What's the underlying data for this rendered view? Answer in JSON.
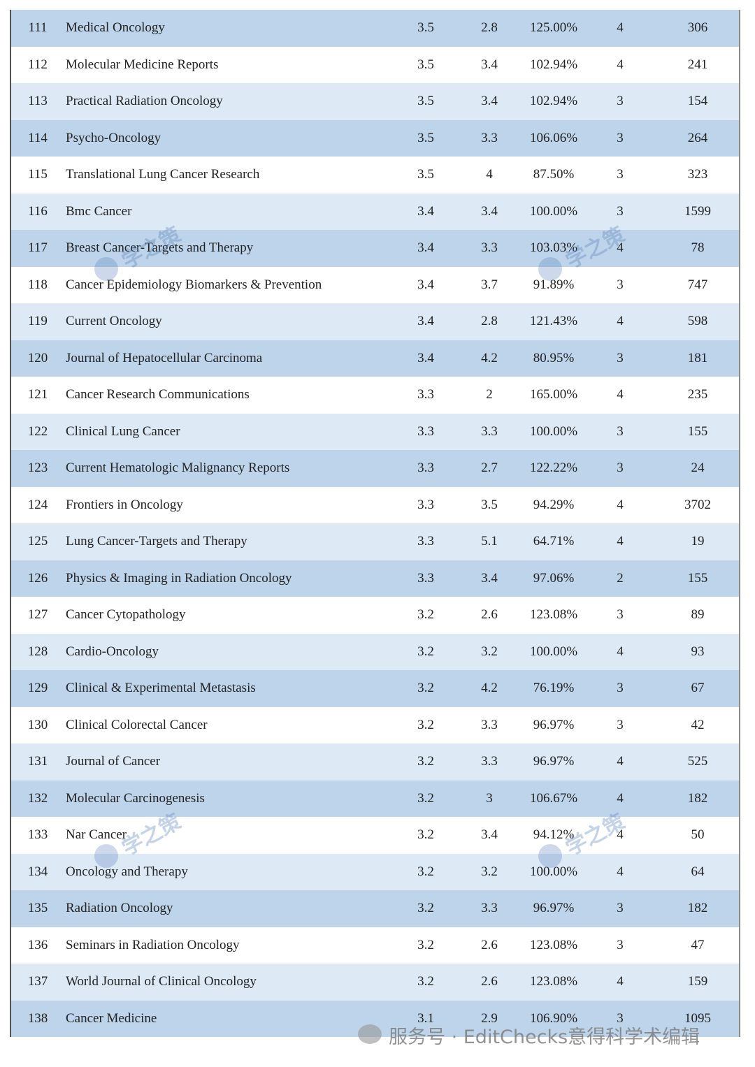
{
  "table": {
    "rows": [
      [
        "111",
        "Medical Oncology",
        "3.5",
        "2.8",
        "125.00%",
        "4",
        "306"
      ],
      [
        "112",
        "Molecular Medicine Reports",
        "3.5",
        "3.4",
        "102.94%",
        "4",
        "241"
      ],
      [
        "113",
        "Practical Radiation Oncology",
        "3.5",
        "3.4",
        "102.94%",
        "3",
        "154"
      ],
      [
        "114",
        "Psycho-Oncology",
        "3.5",
        "3.3",
        "106.06%",
        "3",
        "264"
      ],
      [
        "115",
        "Translational Lung Cancer Research",
        "3.5",
        "4",
        "87.50%",
        "3",
        "323"
      ],
      [
        "116",
        "Bmc Cancer",
        "3.4",
        "3.4",
        "100.00%",
        "3",
        "1599"
      ],
      [
        "117",
        "Breast Cancer-Targets and Therapy",
        "3.4",
        "3.3",
        "103.03%",
        "4",
        "78"
      ],
      [
        "118",
        "Cancer Epidemiology Biomarkers & Prevention",
        "3.4",
        "3.7",
        "91.89%",
        "3",
        "747"
      ],
      [
        "119",
        "Current Oncology",
        "3.4",
        "2.8",
        "121.43%",
        "4",
        "598"
      ],
      [
        "120",
        "Journal of Hepatocellular Carcinoma",
        "3.4",
        "4.2",
        "80.95%",
        "3",
        "181"
      ],
      [
        "121",
        "Cancer Research Communications",
        "3.3",
        "2",
        "165.00%",
        "4",
        "235"
      ],
      [
        "122",
        "Clinical Lung Cancer",
        "3.3",
        "3.3",
        "100.00%",
        "3",
        "155"
      ],
      [
        "123",
        "Current Hematologic Malignancy Reports",
        "3.3",
        "2.7",
        "122.22%",
        "3",
        "24"
      ],
      [
        "124",
        "Frontiers in Oncology",
        "3.3",
        "3.5",
        "94.29%",
        "4",
        "3702"
      ],
      [
        "125",
        "Lung Cancer-Targets and Therapy",
        "3.3",
        "5.1",
        "64.71%",
        "4",
        "19"
      ],
      [
        "126",
        "Physics & Imaging in Radiation Oncology",
        "3.3",
        "3.4",
        "97.06%",
        "2",
        "155"
      ],
      [
        "127",
        "Cancer Cytopathology",
        "3.2",
        "2.6",
        "123.08%",
        "3",
        "89"
      ],
      [
        "128",
        "Cardio-Oncology",
        "3.2",
        "3.2",
        "100.00%",
        "4",
        "93"
      ],
      [
        "129",
        "Clinical & Experimental Metastasis",
        "3.2",
        "4.2",
        "76.19%",
        "3",
        "67"
      ],
      [
        "130",
        "Clinical Colorectal Cancer",
        "3.2",
        "3.3",
        "96.97%",
        "3",
        "42"
      ],
      [
        "131",
        "Journal of Cancer",
        "3.2",
        "3.3",
        "96.97%",
        "4",
        "525"
      ],
      [
        "132",
        "Molecular Carcinogenesis",
        "3.2",
        "3",
        "106.67%",
        "4",
        "182"
      ],
      [
        "133",
        "Nar Cancer",
        "3.2",
        "3.4",
        "94.12%",
        "4",
        "50"
      ],
      [
        "134",
        "Oncology and Therapy",
        "3.2",
        "3.2",
        "100.00%",
        "4",
        "64"
      ],
      [
        "135",
        "Radiation Oncology",
        "3.2",
        "3.3",
        "96.97%",
        "3",
        "182"
      ],
      [
        "136",
        "Seminars in Radiation Oncology",
        "3.2",
        "2.6",
        "123.08%",
        "3",
        "47"
      ],
      [
        "137",
        "World Journal of Clinical Oncology",
        "3.2",
        "2.6",
        "123.08%",
        "4",
        "159"
      ],
      [
        "138",
        "Cancer Medicine",
        "3.1",
        "2.9",
        "106.90%",
        "3",
        "1095"
      ]
    ]
  },
  "watermarks": [
    "学之策",
    "学之策",
    "学之策",
    "学之策"
  ],
  "footer": "服务号 · EditChecks意得科学术编辑"
}
